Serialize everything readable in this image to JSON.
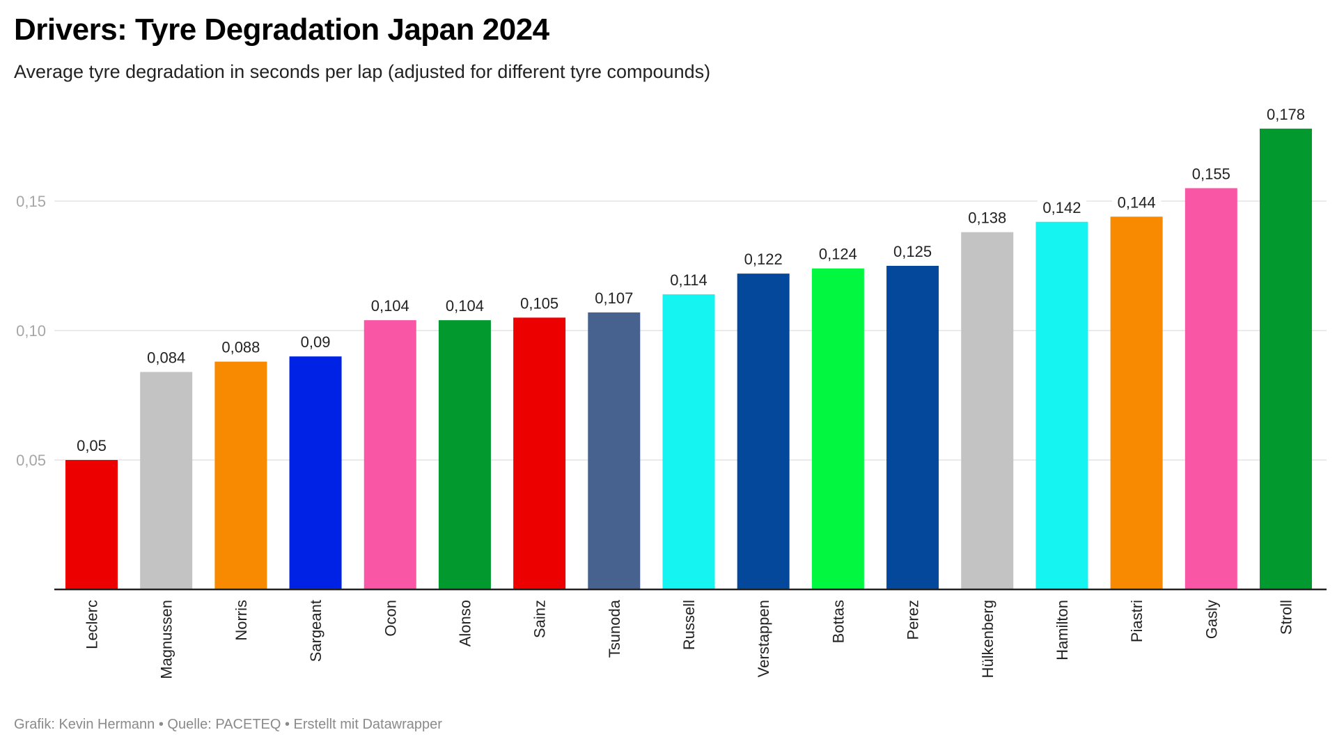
{
  "header": {
    "title": "Drivers: Tyre Degradation Japan 2024",
    "subtitle": "Average tyre degradation in seconds per lap (adjusted for different tyre compounds)"
  },
  "footer": {
    "text": "Grafik: Kevin Hermann • Quelle: PACETEQ • Erstellt mit Datawrapper"
  },
  "chart_data": {
    "type": "bar",
    "title": "Drivers: Tyre Degradation Japan 2024",
    "subtitle": "Average tyre degradation in seconds per lap (adjusted for different tyre compounds)",
    "xlabel": "",
    "ylabel": "",
    "ylim": [
      0,
      0.178
    ],
    "yticks": [
      0.05,
      0.1,
      0.15
    ],
    "ytick_labels": [
      "0,05",
      "0,10",
      "0,15"
    ],
    "grid": true,
    "decimal_separator": ",",
    "categories": [
      "Leclerc",
      "Magnussen",
      "Norris",
      "Sargeant",
      "Ocon",
      "Alonso",
      "Sainz",
      "Tsunoda",
      "Russell",
      "Verstappen",
      "Bottas",
      "Perez",
      "Hülkenberg",
      "Hamilton",
      "Piastri",
      "Gasly",
      "Stroll"
    ],
    "values": [
      0.05,
      0.084,
      0.088,
      0.09,
      0.104,
      0.104,
      0.105,
      0.107,
      0.114,
      0.122,
      0.124,
      0.125,
      0.138,
      0.142,
      0.144,
      0.155,
      0.178
    ],
    "value_labels": [
      "0,05",
      "0,084",
      "0,088",
      "0,09",
      "0,104",
      "0,104",
      "0,105",
      "0,107",
      "0,114",
      "0,122",
      "0,124",
      "0,125",
      "0,138",
      "0,142",
      "0,144",
      "0,155",
      "0,178"
    ],
    "colors": [
      "#EC0000",
      "#C3C3C3",
      "#F78A00",
      "#0022E4",
      "#F956A5",
      "#02992E",
      "#EC0000",
      "#48628F",
      "#15F4F1",
      "#03489B",
      "#02F840",
      "#03489B",
      "#C3C3C3",
      "#15F4F1",
      "#F78A00",
      "#F956A5",
      "#02992E"
    ],
    "source": "PACETEQ",
    "author": "Kevin Hermann"
  },
  "colors": {
    "grid": "#e3e3e3",
    "axis": "#222222",
    "tick_text": "#a6a6a6"
  }
}
